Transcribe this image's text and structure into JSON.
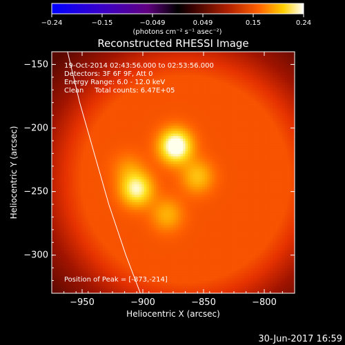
{
  "chart_data": {
    "type": "heatmap",
    "title": "Reconstructed RHESSI Image",
    "xlabel": "Heliocentric X (arcsec)",
    "ylabel": "Heliocentric Y (arcsec)",
    "xlim": [
      -975,
      -775
    ],
    "ylim": [
      -330,
      -140
    ],
    "x_ticks": [
      -950,
      -900,
      -850,
      -800
    ],
    "y_ticks": [
      -150,
      -200,
      -250,
      -300
    ],
    "x_tick_labels": [
      "−950",
      "−900",
      "−850",
      "−800"
    ],
    "y_tick_labels": [
      "−150",
      "−200",
      "−250",
      "−300"
    ],
    "colorbar": {
      "min": -0.24,
      "max": 0.24,
      "tick_labels": [
        "−0.24",
        "−0.15",
        "−0.049",
        "0.049",
        "0.15",
        "0.24"
      ],
      "unit": "(photons cm⁻² s⁻¹ asec⁻²)"
    },
    "info_lines": [
      "19-Oct-2014 02:43:56.000 to 02:53:56.000",
      "Detectors: 3F 6F 9F, Att 0",
      "Energy Range: 6.0 - 12.0 keV",
      "Clean     Total counts: 6.47E+05"
    ],
    "peak_label": "Position of Peak = [-873,-214]",
    "peak": [
      -873,
      -214
    ],
    "background_level": 0.09,
    "sources": [
      {
        "x": -873,
        "y": -214,
        "peak": 0.24
      },
      {
        "x": -905,
        "y": -248,
        "peak": 0.2
      },
      {
        "x": -855,
        "y": -238,
        "peak": 0.15
      },
      {
        "x": -880,
        "y": -268,
        "peak": 0.14
      },
      {
        "x": -912,
        "y": -232,
        "peak": 0.12
      }
    ],
    "limb": [
      [
        -962,
        -140
      ],
      [
        -952,
        -180
      ],
      [
        -940,
        -220
      ],
      [
        -928,
        -260
      ],
      [
        -914,
        -300
      ],
      [
        -902,
        -330
      ]
    ]
  },
  "footer_date": "30-Jun-2017 16:59"
}
